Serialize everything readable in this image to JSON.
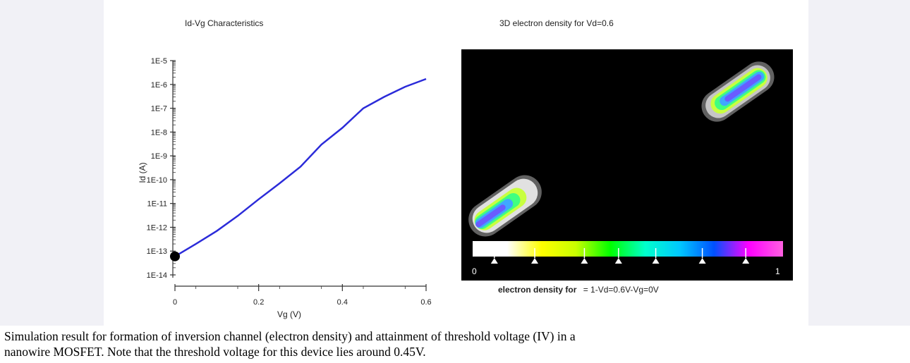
{
  "chart_data": [
    {
      "type": "line",
      "title": "Id-Vg Characteristics",
      "xlabel": "Vg (V)",
      "ylabel": "Id (A)",
      "xlim": [
        0,
        0.6
      ],
      "ylim": [
        1e-14,
        1e-05
      ],
      "y_scale": "log",
      "grid": false,
      "x_ticks": [
        "0",
        "0.2",
        "0.4",
        "0.6"
      ],
      "y_ticks": [
        "1E-5",
        "1E-6",
        "1E-7",
        "1E-8",
        "1E-9",
        "1E-10",
        "1E-11",
        "1E-12",
        "1E-13",
        "1E-14"
      ],
      "series": [
        {
          "color": "#2b2bd9",
          "x": [
            0.0,
            0.05,
            0.1,
            0.15,
            0.2,
            0.25,
            0.3,
            0.35,
            0.4,
            0.45,
            0.5,
            0.55,
            0.6
          ],
          "y": [
            6e-14,
            2e-13,
            7e-13,
            3e-12,
            1.5e-11,
            7e-11,
            3.5e-10,
            3e-09,
            1.5e-08,
            1e-07,
            3e-07,
            8e-07,
            1.7e-06
          ]
        }
      ],
      "marker": {
        "x": 0.0,
        "y": 6e-14,
        "color": "#000000"
      }
    },
    {
      "type": "heatmap",
      "title": "3D electron density for Vd=0.6",
      "background": "#000000",
      "colorbar": {
        "min_label": "0",
        "max_label": "1",
        "colors": [
          "#ffffff",
          "#ffffff",
          "#ffff00",
          "#c8ff00",
          "#00ff00",
          "#00ffcc",
          "#00c8ff",
          "#0050ff",
          "#ff00ff",
          "#ff60e0"
        ],
        "marker_positions": [
          0.07,
          0.2,
          0.36,
          0.47,
          0.59,
          0.74,
          0.88
        ]
      },
      "legend": {
        "bold": "electron density for",
        "rest": "= 1-Vd=0.6V-Vg=0V"
      }
    }
  ],
  "caption": {
    "line1": "Simulation result for formation of inversion channel (electron density) and attainment of threshold voltage (IV) in a",
    "line2": "nanowire MOSFET. Note that the threshold voltage for this device lies around 0.45V."
  }
}
